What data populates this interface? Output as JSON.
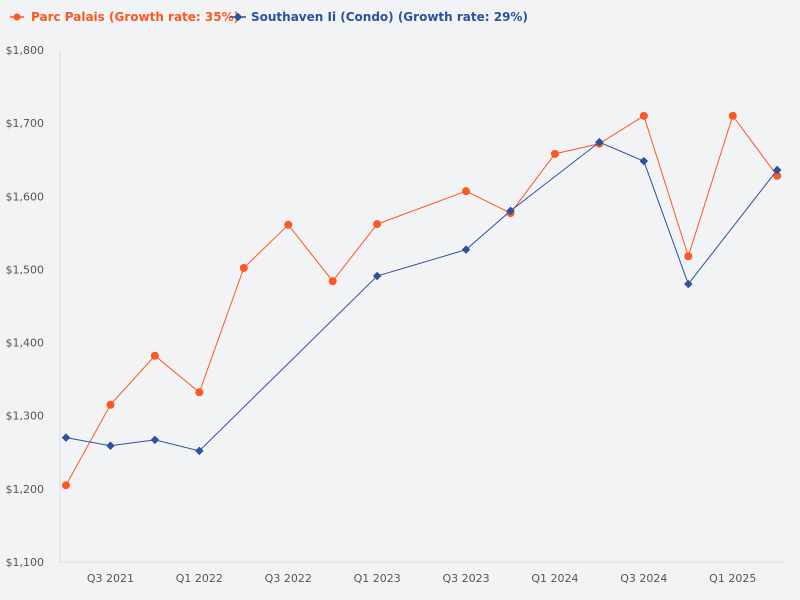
{
  "chart_data": {
    "type": "line",
    "title": "",
    "xlabel": "",
    "ylabel": "",
    "ylim": [
      1100,
      1800
    ],
    "grid": false,
    "legend_position": "top-left",
    "y_ticks": [
      "$1,100",
      "$1,200",
      "$1,300",
      "$1,400",
      "$1,500",
      "$1,600",
      "$1,700",
      "$1,800"
    ],
    "y_tick_values": [
      1100,
      1200,
      1300,
      1400,
      1500,
      1600,
      1700,
      1800
    ],
    "x": [
      "Q2 2021",
      "Q3 2021",
      "Q4 2021",
      "Q1 2022",
      "Q2 2022",
      "Q3 2022",
      "Q4 2022",
      "Q1 2023",
      "Q2 2023",
      "Q3 2023",
      "Q4 2023",
      "Q1 2024",
      "Q2 2024",
      "Q3 2024",
      "Q4 2024",
      "Q1 2025",
      "Q2 2025"
    ],
    "x_tick_labels": [
      "Q3 2021",
      "Q1 2022",
      "Q3 2022",
      "Q1 2023",
      "Q3 2023",
      "Q1 2024",
      "Q3 2024",
      "Q1 2025"
    ],
    "series": [
      {
        "name": "Parc Palais (Growth rate: 35%)",
        "color": "#ff5722",
        "marker": "circle",
        "values": [
          1205,
          1315,
          1382,
          1332,
          1502,
          1561,
          1484,
          1562,
          null,
          1607,
          1577,
          1658,
          1672,
          1710,
          1518,
          1710,
          1628
        ]
      },
      {
        "name": "Southaven Ii (Condo) (Growth rate: 29%)",
        "color": "#2a52a0",
        "marker": "diamond",
        "values": [
          1270,
          1259,
          1267,
          1252,
          null,
          null,
          null,
          1491,
          null,
          1527,
          1580,
          null,
          1674,
          1648,
          1480,
          null,
          1636
        ]
      }
    ]
  }
}
